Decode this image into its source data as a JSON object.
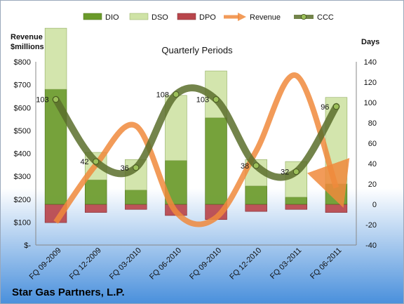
{
  "chart_data": {
    "type": "bar",
    "title": "Quarterly Periods",
    "company": "Star Gas Partners, L.P.",
    "categories": [
      "FQ 09-2009",
      "FQ 12-2009",
      "FQ 03-2010",
      "FQ 06-2010",
      "FQ 09-2010",
      "FQ 12-2010",
      "FQ 03-2011",
      "FQ 06-2011"
    ],
    "y_left": {
      "label_line1": "Revenue",
      "label_line2": "$millions",
      "range": [
        0,
        800
      ],
      "ticks": [
        0,
        100,
        200,
        300,
        400,
        500,
        600,
        700,
        800
      ],
      "tick_labels": [
        "$-",
        "$100",
        "$200",
        "$300",
        "$400",
        "$500",
        "$600",
        "$700",
        "$800"
      ]
    },
    "y_right": {
      "label": "Days",
      "range": [
        -40,
        140
      ],
      "ticks": [
        -40,
        -20,
        0,
        20,
        40,
        60,
        80,
        100,
        120,
        140
      ],
      "tick_labels": [
        "-40",
        "-20",
        "0",
        "20",
        "40",
        "60",
        "80",
        "100",
        "120",
        "140"
      ]
    },
    "series": [
      {
        "name": "DIO",
        "axis": "right",
        "kind": "stacked-bar",
        "values": [
          113,
          24,
          14,
          43,
          85,
          18,
          7,
          20
        ],
        "color": "#6a9a2a"
      },
      {
        "name": "DSO",
        "axis": "right",
        "kind": "stacked-bar",
        "values": [
          60,
          27,
          30,
          64,
          46,
          26,
          35,
          85
        ],
        "color": "#cfe3a6"
      },
      {
        "name": "DPO",
        "axis": "right",
        "kind": "stacked-bar-negative",
        "values": [
          -18,
          -8,
          -5,
          -11,
          -15,
          -7,
          -5,
          -8
        ],
        "color": "#b8454b"
      },
      {
        "name": "Revenue",
        "axis": "left",
        "kind": "line",
        "values": [
          100,
          350,
          520,
          145,
          120,
          410,
          740,
          250
        ],
        "color": "#f08a3c"
      },
      {
        "name": "CCC",
        "axis": "right",
        "kind": "line",
        "values": [
          103,
          42,
          36,
          108,
          103,
          38,
          32,
          96
        ],
        "color": "#5a6e2c"
      }
    ],
    "legend": {
      "position": "top"
    }
  }
}
